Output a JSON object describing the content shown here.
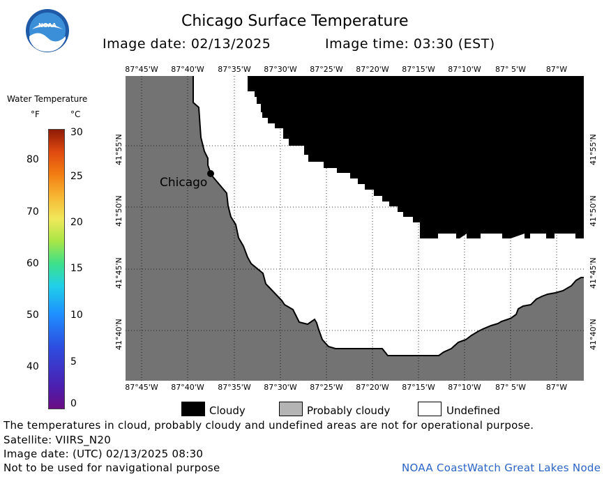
{
  "header": {
    "title": "Chicago Surface Temperature",
    "image_date": "Image date: 02/13/2025",
    "image_time": "Image time: 03:30 (EST)"
  },
  "logo": {
    "text": "NOAA"
  },
  "colorbar": {
    "title": "Water Temperature",
    "unit_f": "°F",
    "unit_c": "°C",
    "f_ticks": [
      "80",
      "70",
      "60",
      "50",
      "40"
    ],
    "c_ticks": [
      "30",
      "25",
      "20",
      "15",
      "10",
      "5",
      "0"
    ]
  },
  "map": {
    "lon_labels": [
      "87°45'W",
      "87°40'W",
      "87°35'W",
      "87°30'W",
      "87°25'W",
      "87°20'W",
      "87°15'W",
      "87°10'W",
      "87° 5'W",
      "87°W"
    ],
    "lat_labels": [
      "41°55'N",
      "41°50'N",
      "41°45'N",
      "41°40'N"
    ],
    "city_label": "Chicago",
    "colors": {
      "land": "#737373",
      "cloudy": "#000000",
      "undefined": "#ffffff",
      "probably_cloudy": "#b4b4b4"
    }
  },
  "legend": {
    "cloudy": "Cloudy",
    "probably_cloudy": "Probably cloudy",
    "undefined": "Undefined"
  },
  "footer": {
    "disclaimer": "The temperatures in cloud, probably cloudy and undefined areas are not for operational purpose.",
    "satellite": "Satellite: VIIRS_N20",
    "utc_date": "Image date: (UTC) 02/13/2025  08:30",
    "nav_warning": "Not to be used for navigational purpose",
    "credit": "NOAA CoastWatch Great Lakes Node"
  }
}
